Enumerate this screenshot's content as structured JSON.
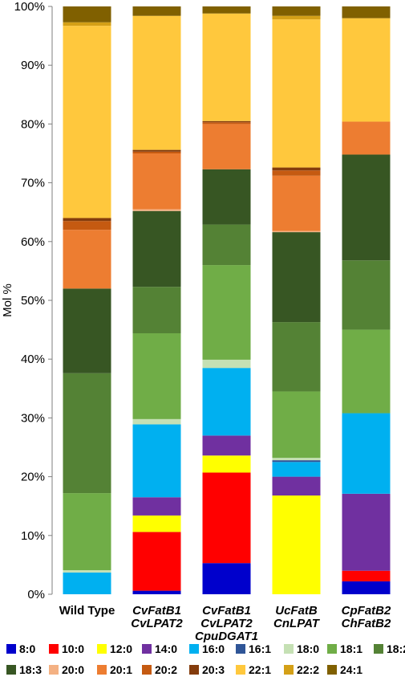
{
  "chart_data": {
    "type": "bar",
    "stacked": true,
    "ylabel": "Mol %",
    "ylim": [
      0,
      100
    ],
    "yticks": [
      "0%",
      "10%",
      "20%",
      "30%",
      "40%",
      "50%",
      "60%",
      "70%",
      "80%",
      "90%",
      "100%"
    ],
    "grid": false,
    "legend_position": "bottom",
    "categories": [
      {
        "lines": [
          "Wild Type"
        ],
        "italic": false
      },
      {
        "lines": [
          "CvFatB1",
          "CvLPAT2"
        ],
        "italic": true
      },
      {
        "lines": [
          "CvFatB1",
          "CvLPAT2",
          "CpuDGAT1"
        ],
        "italic": true
      },
      {
        "lines": [
          "UcFatB",
          "CnLPAT"
        ],
        "italic": true
      },
      {
        "lines": [
          "CpFatB2",
          "ChFatB2"
        ],
        "italic": true
      }
    ],
    "series": [
      {
        "name": "8:0",
        "color": "#0000CC",
        "values": [
          0.0,
          0.6,
          5.3,
          0.0,
          2.2
        ]
      },
      {
        "name": "10:0",
        "color": "#FF0000",
        "values": [
          0.0,
          10.0,
          15.4,
          0.0,
          1.8
        ]
      },
      {
        "name": "12:0",
        "color": "#FFFF00",
        "values": [
          0.0,
          2.8,
          2.9,
          16.8,
          0.0
        ]
      },
      {
        "name": "14:0",
        "color": "#7030A0",
        "values": [
          0.0,
          3.1,
          3.4,
          3.2,
          13.1
        ]
      },
      {
        "name": "16:0",
        "color": "#00B0F0",
        "values": [
          3.7,
          12.4,
          11.5,
          2.5,
          13.7
        ]
      },
      {
        "name": "16:1",
        "color": "#2F5597",
        "values": [
          0.0,
          0.0,
          0.0,
          0.3,
          0.0
        ]
      },
      {
        "name": "18:0",
        "color": "#C5E0B4",
        "values": [
          0.4,
          0.9,
          1.4,
          0.4,
          0.0
        ]
      },
      {
        "name": "18:1",
        "color": "#70AD47",
        "values": [
          13.1,
          14.6,
          16.1,
          11.3,
          14.2
        ]
      },
      {
        "name": "18:2",
        "color": "#548235",
        "values": [
          20.4,
          7.9,
          6.9,
          11.8,
          11.8
        ]
      },
      {
        "name": "18:3",
        "color": "#375623",
        "values": [
          14.4,
          12.9,
          9.4,
          15.3,
          18.0
        ]
      },
      {
        "name": "20:0",
        "color": "#F4B183",
        "values": [
          0.0,
          0.3,
          0.0,
          0.2,
          0.0
        ]
      },
      {
        "name": "20:1",
        "color": "#ED7D31",
        "values": [
          10.0,
          9.5,
          7.7,
          9.4,
          5.6
        ]
      },
      {
        "name": "20:2",
        "color": "#C55A11",
        "values": [
          1.5,
          0.3,
          0.3,
          0.9,
          0.0
        ]
      },
      {
        "name": "20:3",
        "color": "#843C0C",
        "values": [
          0.5,
          0.3,
          0.2,
          0.5,
          0.0
        ]
      },
      {
        "name": "22:1",
        "color": "#FFC83D",
        "values": [
          32.7,
          22.8,
          18.3,
          25.2,
          17.6
        ]
      },
      {
        "name": "22:2",
        "color": "#D4A017",
        "values": [
          0.6,
          0.0,
          0.0,
          0.6,
          0.0
        ]
      },
      {
        "name": "24:1",
        "color": "#806000",
        "values": [
          2.7,
          1.6,
          1.2,
          1.6,
          2.0
        ]
      }
    ]
  }
}
